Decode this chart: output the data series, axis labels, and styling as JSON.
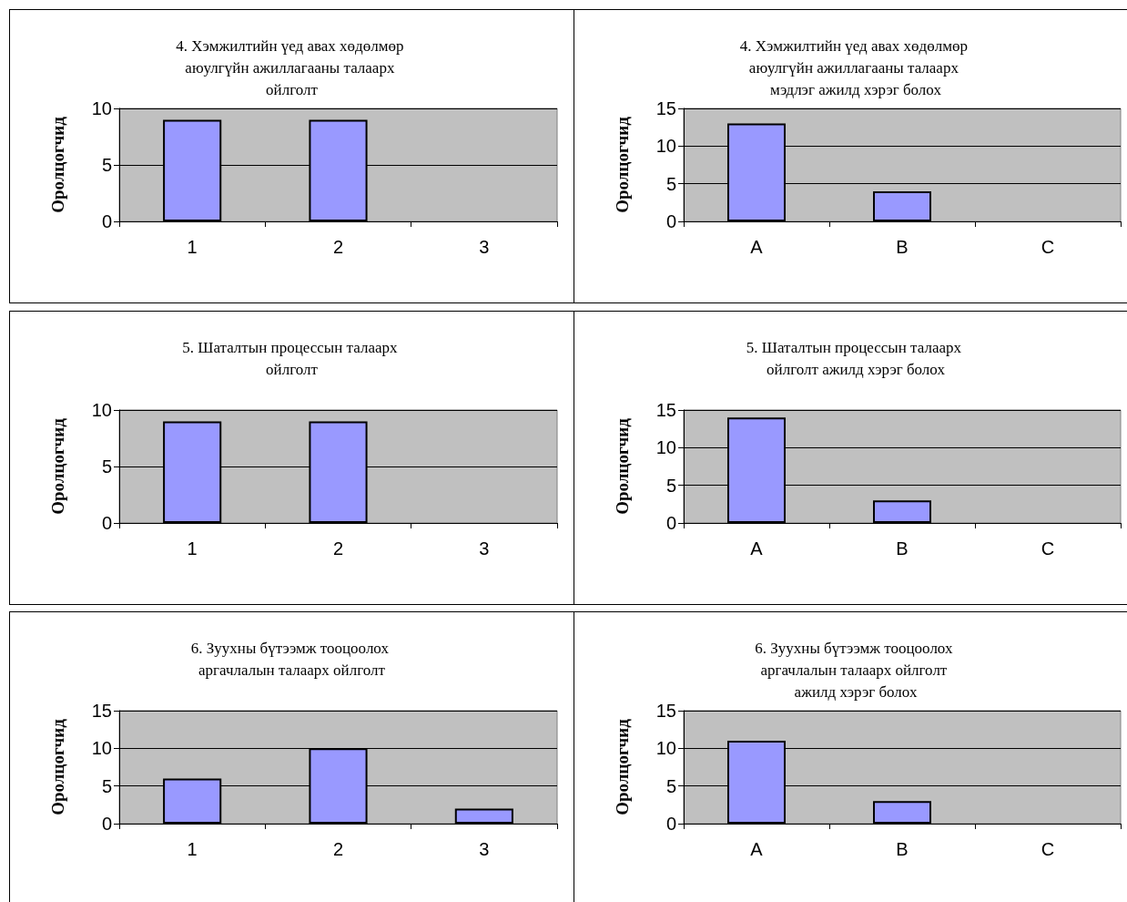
{
  "chart_data": [
    {
      "type": "bar",
      "title": "4. Хэмжилтийн үед авах хөдөлмөр аюулгүйн ажиллагааны талаарх ойлголт",
      "ylabel": "Оролцогчид",
      "categories": [
        "1",
        "2",
        "3"
      ],
      "values": [
        9,
        9,
        null
      ],
      "color": "#9999ff",
      "ylim": [
        0,
        10
      ],
      "yticks": [
        0,
        5,
        10
      ],
      "grid": "y"
    },
    {
      "type": "bar",
      "title": "4. Хэмжилтийн үед авах хөдөлмөр аюулгүйн ажиллагааны талаарх мэдлэг ажилд хэрэг болох",
      "ylabel": "Оролцогчид",
      "categories": [
        "A",
        "B",
        "C"
      ],
      "values": [
        13,
        4,
        null
      ],
      "color": "#9999ff",
      "ylim": [
        0,
        15
      ],
      "yticks": [
        0,
        5,
        10,
        15
      ],
      "grid": "y"
    },
    {
      "type": "bar",
      "title": "5. Шаталтын процессын талаарх ойлголт",
      "ylabel": "Оролцогчид",
      "categories": [
        "1",
        "2",
        "3"
      ],
      "values": [
        9,
        9,
        null
      ],
      "color": "#9999ff",
      "ylim": [
        0,
        10
      ],
      "yticks": [
        0,
        5,
        10
      ],
      "grid": "y"
    },
    {
      "type": "bar",
      "title": "5. Шаталтын процессын талаарх ойлголт ажилд хэрэг болох",
      "ylabel": "Оролцогчид",
      "categories": [
        "A",
        "B",
        "C"
      ],
      "values": [
        14,
        3,
        null
      ],
      "color": "#9999ff",
      "ylim": [
        0,
        15
      ],
      "yticks": [
        0,
        5,
        10,
        15
      ],
      "grid": "y"
    },
    {
      "type": "bar",
      "title": "6. Зуухны бүтээмж тооцоолох аргачлалын талаарх ойлголт",
      "ylabel": "Оролцогчид",
      "categories": [
        "1",
        "2",
        "3"
      ],
      "values": [
        6,
        10,
        2
      ],
      "color": "#9999ff",
      "ylim": [
        0,
        15
      ],
      "yticks": [
        0,
        5,
        10,
        15
      ],
      "grid": "y"
    },
    {
      "type": "bar",
      "title": "6. Зуухны бүтээмж тооцоолох аргачлалын талаарх ойлголт ажилд хэрэг болох",
      "ylabel": "Оролцогчид",
      "categories": [
        "A",
        "B",
        "C"
      ],
      "values": [
        11,
        3,
        null
      ],
      "color": "#9999ff",
      "ylim": [
        0,
        15
      ],
      "yticks": [
        0,
        5,
        10,
        15
      ],
      "grid": "y"
    }
  ]
}
